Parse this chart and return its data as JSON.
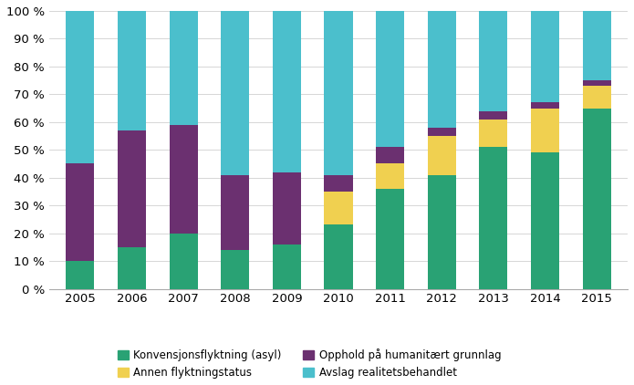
{
  "years": [
    2005,
    2006,
    2007,
    2008,
    2009,
    2010,
    2011,
    2012,
    2013,
    2014,
    2015
  ],
  "konvensjon": [
    10,
    15,
    20,
    14,
    16,
    23,
    36,
    41,
    51,
    49,
    65
  ],
  "annen": [
    0,
    0,
    0,
    0,
    0,
    12,
    9,
    14,
    10,
    16,
    8
  ],
  "opphold": [
    35,
    42,
    39,
    27,
    26,
    6,
    6,
    3,
    3,
    2,
    2
  ],
  "avslag": [
    55,
    43,
    41,
    59,
    58,
    59,
    49,
    42,
    36,
    33,
    25
  ],
  "colors": {
    "konvensjon": "#29a274",
    "annen": "#f0d050",
    "opphold": "#6b3070",
    "avslag": "#4bbfcc"
  },
  "legend_labels": {
    "konvensjon": "Konvensjonsflyktning (asyl)",
    "annen": "Annen flyktningstatus",
    "opphold": "Opphold på humanitært grunnlag",
    "avslag": "Avslag realitetsbehandlet"
  },
  "yticks": [
    0,
    10,
    20,
    30,
    40,
    50,
    60,
    70,
    80,
    90,
    100
  ],
  "ytick_labels": [
    "0 %",
    "10 %",
    "20 %",
    "30 %",
    "40 %",
    "50 %",
    "60 %",
    "70 %",
    "80 %",
    "90 %",
    "100 %"
  ],
  "background_color": "#ffffff",
  "bar_width": 0.55,
  "figsize": [
    6.95,
    4.22
  ],
  "dpi": 100
}
